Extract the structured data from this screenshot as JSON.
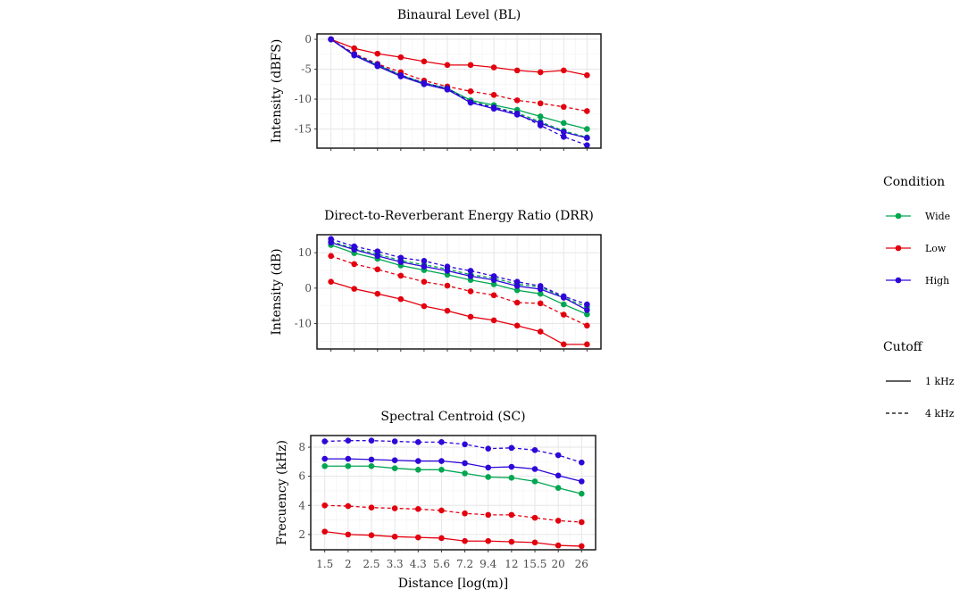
{
  "chart_data": [
    {
      "type": "line",
      "title": "Binaural Level (BL)",
      "ylabel": "Intensity (dBFS)",
      "xlabel": "",
      "x": [
        1.5,
        2,
        2.5,
        3.3,
        4.3,
        5.6,
        7.2,
        9.4,
        12,
        15.5,
        20,
        26
      ],
      "ylim": [
        -18.2,
        0.9
      ],
      "yticks": [
        0,
        -5,
        -10,
        -15
      ],
      "series": [
        {
          "name": "Wide",
          "cutoff": "1 kHz",
          "values": [
            0,
            -2.6,
            -4.3,
            -6.0,
            -7.3,
            -8.2,
            -10.2,
            -11.0,
            -11.8,
            -12.9,
            -14.0,
            -15.0
          ]
        },
        {
          "name": "Wide",
          "cutoff": "4 kHz",
          "values": [
            0,
            -2.6,
            -4.4,
            -6.1,
            -7.5,
            -8.4,
            -10.4,
            -11.3,
            -12.3,
            -13.8,
            -15.3,
            -16.4
          ]
        },
        {
          "name": "Low",
          "cutoff": "1 kHz",
          "values": [
            0,
            -1.5,
            -2.4,
            -3.0,
            -3.7,
            -4.3,
            -4.3,
            -4.7,
            -5.2,
            -5.5,
            -5.2,
            -6.0
          ]
        },
        {
          "name": "Low",
          "cutoff": "4 kHz",
          "values": [
            0,
            -2.4,
            -4.1,
            -5.5,
            -6.9,
            -7.9,
            -8.7,
            -9.3,
            -10.2,
            -10.7,
            -11.3,
            -12.0
          ]
        },
        {
          "name": "High",
          "cutoff": "1 kHz",
          "values": [
            0,
            -2.7,
            -4.5,
            -6.2,
            -7.5,
            -8.4,
            -10.6,
            -11.6,
            -12.6,
            -14.0,
            -15.5,
            -16.5
          ]
        },
        {
          "name": "High",
          "cutoff": "4 kHz",
          "values": [
            0,
            -2.5,
            -4.2,
            -6.0,
            -7.3,
            -8.2,
            -10.5,
            -11.4,
            -12.4,
            -14.4,
            -16.3,
            -17.7
          ]
        }
      ]
    },
    {
      "type": "line",
      "title": "Direct-to-Reverberant Energy Ratio (DRR)",
      "ylabel": "Intensity (dB)",
      "xlabel": "",
      "x": [
        1.5,
        2,
        2.5,
        3.3,
        4.3,
        5.6,
        7.2,
        9.4,
        12,
        15.5,
        20,
        26
      ],
      "ylim": [
        -17.2,
        15.1
      ],
      "yticks": [
        10,
        0,
        -10
      ],
      "series": [
        {
          "name": "Wide",
          "cutoff": "1 kHz",
          "values": [
            12.2,
            9.9,
            8.3,
            6.4,
            5.1,
            3.8,
            2.3,
            1.1,
            -0.6,
            -1.6,
            -4.6,
            -7.4
          ]
        },
        {
          "name": "Wide",
          "cutoff": "4 kHz",
          "values": [
            13.2,
            11.2,
            9.6,
            7.8,
            6.6,
            5.4,
            3.8,
            2.8,
            1.1,
            0.3,
            -2.6,
            -5.4
          ]
        },
        {
          "name": "Low",
          "cutoff": "1 kHz",
          "values": [
            1.8,
            -0.2,
            -1.6,
            -3.1,
            -5.1,
            -6.4,
            -8.1,
            -9.1,
            -10.6,
            -12.3,
            -15.9,
            -15.9
          ]
        },
        {
          "name": "Low",
          "cutoff": "4 kHz",
          "values": [
            9.1,
            6.8,
            5.3,
            3.5,
            1.8,
            0.7,
            -0.9,
            -2.0,
            -4.1,
            -4.3,
            -7.5,
            -10.6
          ]
        },
        {
          "name": "High",
          "cutoff": "1 kHz",
          "values": [
            12.9,
            10.9,
            9.1,
            7.4,
            6.1,
            4.9,
            3.4,
            2.3,
            0.6,
            -0.3,
            -2.7,
            -6.2
          ]
        },
        {
          "name": "High",
          "cutoff": "4 kHz",
          "values": [
            13.9,
            11.8,
            10.4,
            8.6,
            7.7,
            6.1,
            4.9,
            3.4,
            1.8,
            0.6,
            -2.3,
            -4.6
          ]
        }
      ]
    },
    {
      "type": "line",
      "title": "Spectral Centroid (SC)",
      "ylabel": "Frecuency (kHz)",
      "xlabel": "Distance [log(m)]",
      "x": [
        1.5,
        2,
        2.5,
        3.3,
        4.3,
        5.6,
        7.2,
        9.4,
        12,
        15.5,
        20,
        26
      ],
      "xtick_labels": [
        "1.5",
        "2",
        "2.5",
        "3.3",
        "4.3",
        "5.6",
        "7.2",
        "9.4",
        "12",
        "15.5",
        "20",
        "26"
      ],
      "ylim": [
        0.95,
        8.8
      ],
      "yticks": [
        8,
        6,
        4,
        2
      ],
      "series": [
        {
          "name": "Wide",
          "cutoff": "1 kHz",
          "values": [
            6.7,
            6.7,
            6.7,
            6.55,
            6.45,
            6.45,
            6.2,
            5.95,
            5.9,
            5.65,
            5.2,
            4.8
          ]
        },
        {
          "name": "Low",
          "cutoff": "1 kHz",
          "values": [
            2.2,
            2.0,
            1.95,
            1.85,
            1.8,
            1.75,
            1.55,
            1.55,
            1.5,
            1.45,
            1.25,
            1.2
          ]
        },
        {
          "name": "Low",
          "cutoff": "4 kHz",
          "values": [
            4.0,
            3.95,
            3.85,
            3.8,
            3.75,
            3.65,
            3.45,
            3.35,
            3.35,
            3.15,
            2.95,
            2.85
          ]
        },
        {
          "name": "High",
          "cutoff": "1 kHz",
          "values": [
            7.2,
            7.2,
            7.15,
            7.1,
            7.05,
            7.05,
            6.9,
            6.6,
            6.65,
            6.5,
            6.05,
            5.65
          ]
        },
        {
          "name": "High",
          "cutoff": "4 kHz",
          "values": [
            8.4,
            8.45,
            8.45,
            8.4,
            8.35,
            8.35,
            8.2,
            7.9,
            7.95,
            7.8,
            7.45,
            6.95
          ]
        }
      ]
    }
  ],
  "legend": {
    "placement": "right",
    "condition_title": "Condition",
    "conditions": [
      {
        "name": "Wide",
        "color": "#00a651"
      },
      {
        "name": "Low",
        "color": "#e3000f"
      },
      {
        "name": "High",
        "color": "#2e07d8"
      }
    ],
    "cutoff_title": "Cutoff",
    "cutoffs": [
      {
        "name": "1 kHz",
        "linetype": "solid"
      },
      {
        "name": "4 kHz",
        "linetype": "dashed"
      }
    ]
  }
}
